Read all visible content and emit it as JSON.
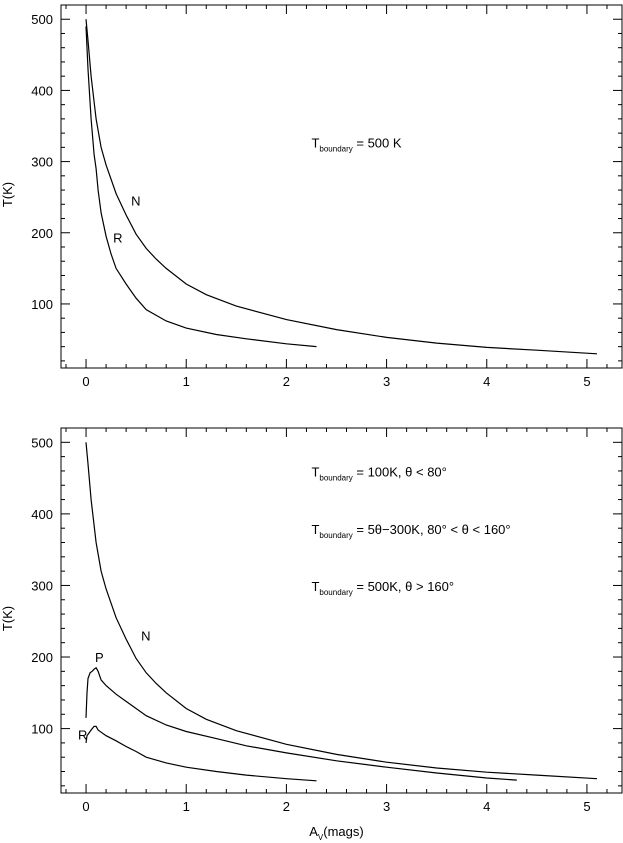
{
  "chart_data": [
    {
      "type": "line",
      "xlabel": "",
      "ylabel": "T(K)",
      "xlim": [
        -0.25,
        5.35
      ],
      "ylim": [
        10,
        520
      ],
      "xticks": [
        0,
        1,
        2,
        3,
        4,
        5
      ],
      "yticks": [
        100,
        200,
        300,
        400,
        500
      ],
      "xtick_labels": [
        "0",
        "1",
        "2",
        "3",
        "4",
        "5"
      ],
      "ytick_labels": [
        "100",
        "200",
        "300",
        "400",
        "500"
      ],
      "annotations": [
        {
          "main": "T",
          "sub": "boundary",
          "rest": " = 500 K",
          "at": [
            2.25,
            320
          ]
        }
      ],
      "series": [
        {
          "name": "N",
          "label_at": [
            0.45,
            238
          ],
          "x": [
            0,
            0.02,
            0.05,
            0.1,
            0.15,
            0.2,
            0.3,
            0.4,
            0.5,
            0.6,
            0.7,
            0.8,
            1.0,
            1.2,
            1.5,
            2.0,
            2.5,
            3.0,
            3.5,
            4.0,
            4.5,
            5.1
          ],
          "y": [
            500,
            470,
            420,
            360,
            320,
            295,
            255,
            225,
            198,
            178,
            163,
            150,
            128,
            113,
            97,
            78,
            64,
            53,
            45,
            39,
            35,
            30
          ]
        },
        {
          "name": "R",
          "label_at": [
            0.27,
            186
          ],
          "x": [
            0,
            0.02,
            0.05,
            0.08,
            0.1,
            0.12,
            0.15,
            0.2,
            0.25,
            0.3,
            0.4,
            0.5,
            0.6,
            0.8,
            1.0,
            1.3,
            1.6,
            2.0,
            2.3
          ],
          "y": [
            490,
            430,
            360,
            310,
            290,
            260,
            228,
            195,
            170,
            150,
            128,
            108,
            92,
            76,
            66,
            57,
            51,
            44,
            40
          ]
        }
      ]
    },
    {
      "type": "line",
      "xlabel": "A_V(mags)",
      "xlabel_main": "A",
      "xlabel_sub": "V",
      "xlabel_rest": "(mags)",
      "ylabel": "T(K)",
      "xlim": [
        -0.25,
        5.35
      ],
      "ylim": [
        10,
        520
      ],
      "xticks": [
        0,
        1,
        2,
        3,
        4,
        5
      ],
      "yticks": [
        100,
        200,
        300,
        400,
        500
      ],
      "xtick_labels": [
        "0",
        "1",
        "2",
        "3",
        "4",
        "5"
      ],
      "ytick_labels": [
        "100",
        "200",
        "300",
        "400",
        "500"
      ],
      "annotations": [
        {
          "main": "T",
          "sub": "boundary",
          "rest": " = 100K, θ < 80°",
          "at": [
            2.25,
            452
          ]
        },
        {
          "main": "T",
          "sub": "boundary",
          "rest": " = 5θ−300K, 80° < θ < 160°",
          "at": [
            2.25,
            372
          ]
        },
        {
          "main": "T",
          "sub": "boundary",
          "rest": " = 500K, θ > 160°",
          "at": [
            2.25,
            292
          ]
        }
      ],
      "series": [
        {
          "name": "N",
          "label_at": [
            0.55,
            223
          ],
          "x": [
            0,
            0.02,
            0.05,
            0.1,
            0.15,
            0.2,
            0.3,
            0.4,
            0.5,
            0.6,
            0.7,
            0.8,
            1.0,
            1.2,
            1.5,
            2.0,
            2.5,
            3.0,
            3.5,
            4.0,
            4.5,
            5.1
          ],
          "y": [
            500,
            470,
            420,
            360,
            320,
            295,
            255,
            225,
            198,
            178,
            163,
            150,
            128,
            113,
            97,
            78,
            64,
            53,
            45,
            39,
            35,
            30
          ]
        },
        {
          "name": "P",
          "label_at": [
            0.09,
            193
          ],
          "x": [
            0,
            0.01,
            0.02,
            0.04,
            0.06,
            0.08,
            0.1,
            0.12,
            0.15,
            0.2,
            0.3,
            0.4,
            0.5,
            0.6,
            0.8,
            1.0,
            1.3,
            1.6,
            2.0,
            2.5,
            3.0,
            3.5,
            4.0,
            4.3
          ],
          "y": [
            115,
            150,
            170,
            178,
            180,
            183,
            185,
            180,
            168,
            160,
            148,
            138,
            128,
            118,
            105,
            96,
            86,
            76,
            66,
            55,
            46,
            38,
            31,
            28
          ]
        },
        {
          "name": "R",
          "label_at": [
            -0.08,
            85
          ],
          "x": [
            0,
            0.01,
            0.03,
            0.05,
            0.08,
            0.1,
            0.12,
            0.15,
            0.2,
            0.3,
            0.4,
            0.5,
            0.6,
            0.8,
            1.0,
            1.3,
            1.6,
            2.0,
            2.3
          ],
          "y": [
            80,
            90,
            94,
            98,
            103,
            103,
            98,
            95,
            90,
            83,
            75,
            68,
            60,
            52,
            46,
            40,
            35,
            30,
            27
          ]
        }
      ]
    }
  ]
}
